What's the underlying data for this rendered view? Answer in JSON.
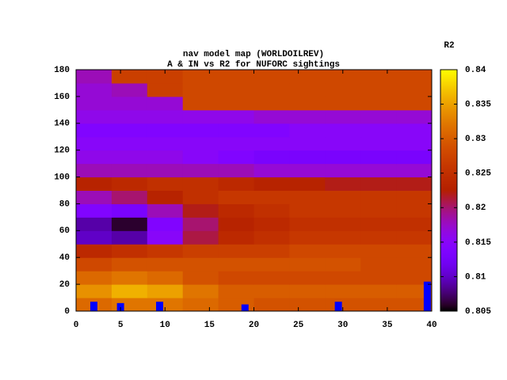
{
  "chart_data": {
    "type": "heatmap",
    "title": "nav model map (WORLDOILREV)",
    "subtitle": "A & IN vs R2 for NUFORC sightings",
    "colorbar_label": "R2",
    "xlim": [
      0,
      40
    ],
    "ylim": [
      0,
      180
    ],
    "xticks": [
      0,
      5,
      10,
      15,
      20,
      25,
      30,
      35,
      40
    ],
    "yticks": [
      0,
      20,
      40,
      60,
      80,
      100,
      120,
      140,
      160,
      180
    ],
    "zlim": [
      0.805,
      0.84
    ],
    "zticks": [
      0.805,
      0.81,
      0.815,
      0.82,
      0.825,
      0.83,
      0.835,
      0.84
    ],
    "x_edges": [
      0,
      4,
      8,
      12,
      16,
      20,
      24,
      28,
      32,
      36,
      40
    ],
    "y_edges": [
      0,
      10,
      20,
      30,
      40,
      50,
      60,
      70,
      80,
      90,
      100,
      110,
      120,
      130,
      140,
      150,
      160,
      170,
      180
    ],
    "z": [
      [
        0.831,
        0.832,
        0.832,
        0.831,
        0.83,
        0.829,
        0.829,
        0.829,
        0.829,
        0.829
      ],
      [
        0.834,
        0.836,
        0.835,
        0.832,
        0.83,
        0.83,
        0.83,
        0.83,
        0.83,
        0.83
      ],
      [
        0.831,
        0.832,
        0.831,
        0.829,
        0.828,
        0.828,
        0.828,
        0.828,
        0.828,
        0.828
      ],
      [
        0.828,
        0.829,
        0.829,
        0.829,
        0.829,
        0.829,
        0.829,
        0.829,
        0.828,
        0.828
      ],
      [
        0.824,
        0.825,
        0.826,
        0.827,
        0.827,
        0.827,
        0.828,
        0.828,
        0.828,
        0.828
      ],
      [
        0.81,
        0.809,
        0.815,
        0.821,
        0.824,
        0.825,
        0.826,
        0.826,
        0.826,
        0.826
      ],
      [
        0.809,
        0.806,
        0.814,
        0.82,
        0.823,
        0.824,
        0.825,
        0.825,
        0.825,
        0.825
      ],
      [
        0.814,
        0.813,
        0.818,
        0.822,
        0.824,
        0.825,
        0.826,
        0.826,
        0.826,
        0.826
      ],
      [
        0.818,
        0.82,
        0.823,
        0.825,
        0.826,
        0.826,
        0.826,
        0.826,
        0.826,
        0.826
      ],
      [
        0.823,
        0.824,
        0.825,
        0.825,
        0.824,
        0.823,
        0.823,
        0.822,
        0.822,
        0.822
      ],
      [
        0.818,
        0.818,
        0.818,
        0.818,
        0.818,
        0.817,
        0.817,
        0.817,
        0.817,
        0.817
      ],
      [
        0.816,
        0.816,
        0.816,
        0.815,
        0.814,
        0.813,
        0.813,
        0.813,
        0.813,
        0.813
      ],
      [
        0.815,
        0.815,
        0.815,
        0.815,
        0.815,
        0.815,
        0.815,
        0.815,
        0.815,
        0.815
      ],
      [
        0.814,
        0.814,
        0.814,
        0.814,
        0.814,
        0.814,
        0.815,
        0.815,
        0.815,
        0.815
      ],
      [
        0.816,
        0.816,
        0.816,
        0.816,
        0.816,
        0.817,
        0.817,
        0.817,
        0.817,
        0.817
      ],
      [
        0.817,
        0.817,
        0.817,
        0.828,
        0.828,
        0.828,
        0.828,
        0.828,
        0.828,
        0.828
      ],
      [
        0.817,
        0.818,
        0.827,
        0.828,
        0.828,
        0.828,
        0.828,
        0.828,
        0.828,
        0.828
      ],
      [
        0.818,
        0.827,
        0.827,
        0.828,
        0.828,
        0.828,
        0.828,
        0.828,
        0.828,
        0.828
      ]
    ],
    "bars": {
      "x": [
        2,
        5,
        9.4,
        19,
        29.5,
        39.5
      ],
      "values": [
        7,
        6,
        7,
        5,
        7,
        22
      ],
      "color": "#0000ff"
    }
  }
}
